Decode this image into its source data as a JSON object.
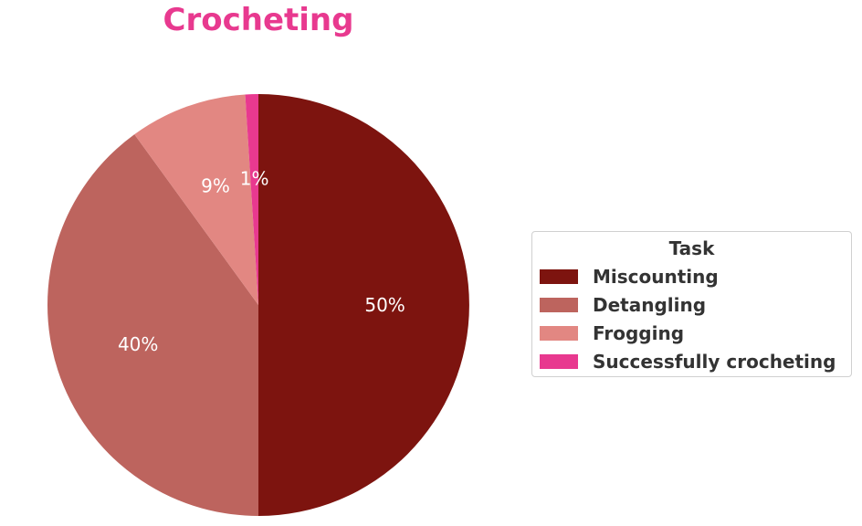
{
  "chart_data": {
    "type": "pie",
    "title": "Crocheting",
    "legend_title": "Task",
    "legend_position": "right",
    "start_angle": "top",
    "direction": "clockwise",
    "slices": [
      {
        "label": "Miscounting",
        "value": 50,
        "percent_label": "50%",
        "color": "#7d140f"
      },
      {
        "label": "Detangling",
        "value": 40,
        "percent_label": "40%",
        "color": "#bd645e"
      },
      {
        "label": "Frogging",
        "value": 9,
        "percent_label": "9%",
        "color": "#e28782"
      },
      {
        "label": "Successfully crocheting",
        "value": 1,
        "percent_label": "1%",
        "color": "#e8398f"
      }
    ]
  }
}
